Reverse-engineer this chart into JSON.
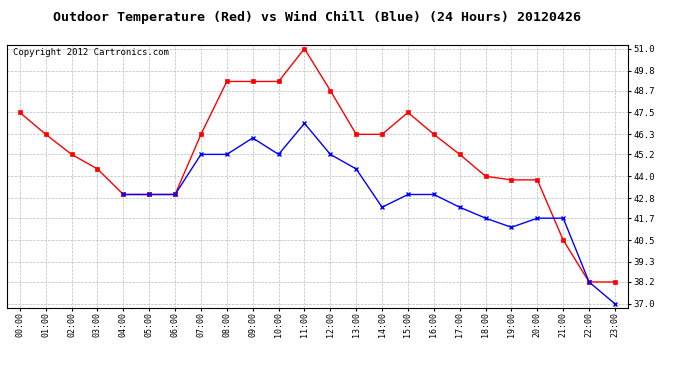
{
  "title": "Outdoor Temperature (Red) vs Wind Chill (Blue) (24 Hours) 20120426",
  "copyright": "Copyright 2012 Cartronics.com",
  "x_labels": [
    "00:00",
    "01:00",
    "02:00",
    "03:00",
    "04:00",
    "05:00",
    "06:00",
    "07:00",
    "08:00",
    "09:00",
    "10:00",
    "11:00",
    "12:00",
    "13:00",
    "14:00",
    "15:00",
    "16:00",
    "17:00",
    "18:00",
    "19:00",
    "20:00",
    "21:00",
    "22:00",
    "23:00"
  ],
  "temp_red": [
    47.5,
    46.3,
    45.2,
    44.4,
    43.0,
    43.0,
    43.0,
    46.3,
    49.2,
    49.2,
    49.2,
    51.0,
    48.7,
    46.3,
    46.3,
    47.5,
    46.3,
    45.2,
    44.0,
    43.8,
    43.8,
    40.5,
    38.2,
    38.2
  ],
  "wind_blue": [
    null,
    null,
    null,
    null,
    43.0,
    43.0,
    43.0,
    45.2,
    45.2,
    46.1,
    45.2,
    46.9,
    45.2,
    44.4,
    42.3,
    43.0,
    43.0,
    42.3,
    41.7,
    41.2,
    41.7,
    41.7,
    38.2,
    37.0
  ],
  "ylim": [
    36.8,
    51.2
  ],
  "yticks": [
    37.0,
    38.2,
    39.3,
    40.5,
    41.7,
    42.8,
    44.0,
    45.2,
    46.3,
    47.5,
    48.7,
    49.8,
    51.0
  ],
  "background_color": "#ffffff",
  "grid_color": "#bbbbbb",
  "red_color": "#ff0000",
  "blue_color": "#0000ff",
  "title_fontsize": 9.5,
  "copyright_fontsize": 6.5
}
